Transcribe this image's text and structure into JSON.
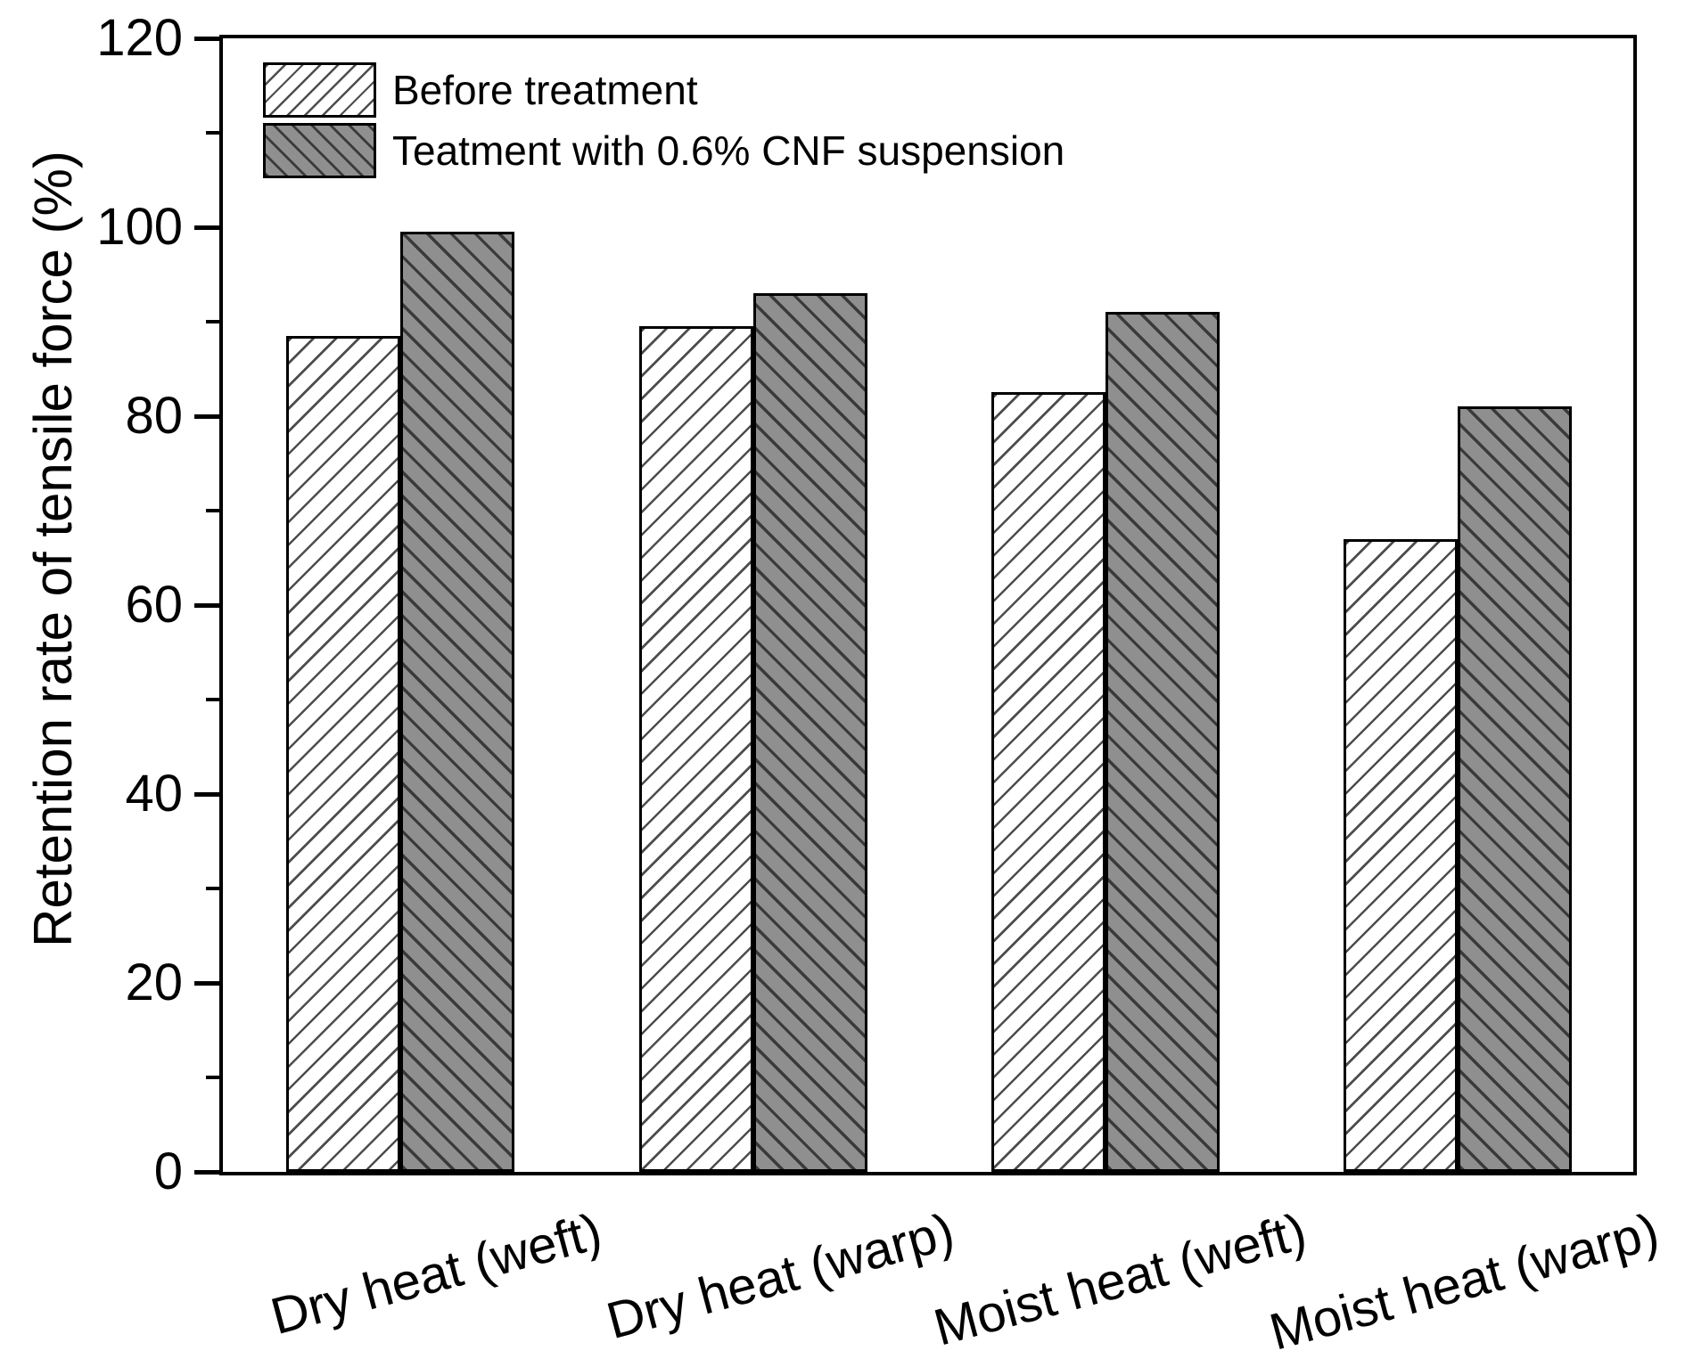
{
  "chart_data": {
    "type": "bar",
    "title": "",
    "ylabel": "Retention rate of tensile force (%)",
    "ylim": [
      0,
      120
    ],
    "yticks": [
      0,
      20,
      40,
      60,
      80,
      100,
      120
    ],
    "minor_yticks": [
      10,
      30,
      50,
      70,
      90,
      110
    ],
    "categories": [
      "Dry heat (weft)",
      "Dry heat (warp)",
      "Moist heat (weft)",
      "Moist heat (warp)"
    ],
    "series": [
      {
        "name": "Before treatment",
        "fill": "#ffffff",
        "hatch": "/",
        "values": [
          88.5,
          89.5,
          82.5,
          67
        ]
      },
      {
        "name": "Teatment with 0.6% CNF suspension",
        "fill": "#8f8f8f",
        "hatch": "\\",
        "values": [
          99.5,
          93,
          91,
          81
        ]
      }
    ],
    "legend_position": "top-left-inside",
    "grid": false,
    "colors": {
      "axis": "#000000",
      "bar_edge": "#000000",
      "hatch_line": "#3a3a3a",
      "gray_fill": "#8f8f8f",
      "text": "#000000"
    }
  }
}
